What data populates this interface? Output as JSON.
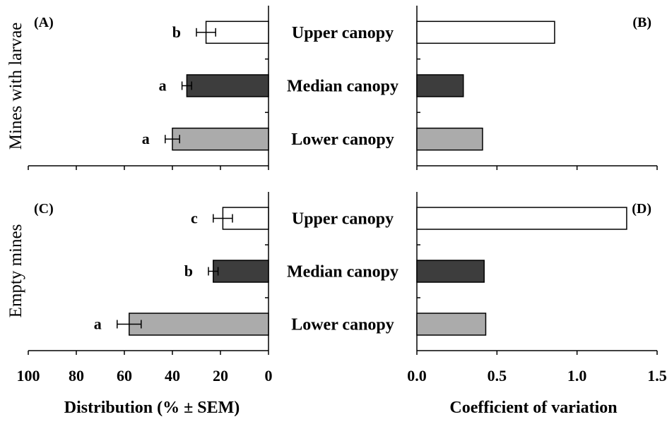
{
  "figure": {
    "row_titles": [
      "Mines with larvae",
      "Empty mines"
    ],
    "categories": [
      "Upper canopy",
      "Median canopy",
      "Lower canopy"
    ]
  },
  "chart_data": [
    {
      "panel": "(A)",
      "type": "bar",
      "orientation": "horizontal",
      "x_reversed": true,
      "categories": [
        "Upper canopy",
        "Median canopy",
        "Lower canopy"
      ],
      "values": [
        26,
        34,
        40
      ],
      "errors": [
        4,
        2,
        3
      ],
      "significance": [
        "b",
        "a",
        "a"
      ],
      "bar_colors": [
        "#ffffff",
        "#3d3d3d",
        "#ababab"
      ],
      "xlim": [
        0,
        100
      ],
      "xticks": [
        100,
        80,
        60,
        40,
        20,
        0
      ],
      "xlabel": "Distribution (% ± SEM)",
      "ylabel": "Mines with larvae"
    },
    {
      "panel": "(B)",
      "type": "bar",
      "orientation": "horizontal",
      "categories": [
        "Upper canopy",
        "Median canopy",
        "Lower canopy"
      ],
      "values": [
        0.86,
        0.29,
        0.41
      ],
      "bar_colors": [
        "#ffffff",
        "#3d3d3d",
        "#ababab"
      ],
      "xlim": [
        0,
        1.5
      ],
      "xticks": [
        "0.0",
        "0.5",
        "1.0",
        "1.5"
      ],
      "xlabel": "Coefficient of variation"
    },
    {
      "panel": "(C)",
      "type": "bar",
      "orientation": "horizontal",
      "x_reversed": true,
      "categories": [
        "Upper canopy",
        "Median canopy",
        "Lower canopy"
      ],
      "values": [
        19,
        23,
        58
      ],
      "errors": [
        4,
        2,
        5
      ],
      "significance": [
        "c",
        "b",
        "a"
      ],
      "bar_colors": [
        "#ffffff",
        "#3d3d3d",
        "#ababab"
      ],
      "xlim": [
        0,
        100
      ],
      "xticks": [
        100,
        80,
        60,
        40,
        20,
        0
      ],
      "xlabel": "Distribution (% ± SEM)",
      "ylabel": "Empty mines"
    },
    {
      "panel": "(D)",
      "type": "bar",
      "orientation": "horizontal",
      "categories": [
        "Upper canopy",
        "Median canopy",
        "Lower canopy"
      ],
      "values": [
        1.31,
        0.42,
        0.43
      ],
      "bar_colors": [
        "#ffffff",
        "#3d3d3d",
        "#ababab"
      ],
      "xlim": [
        0,
        1.5
      ],
      "xticks": [
        "0.0",
        "0.5",
        "1.0",
        "1.5"
      ],
      "xlabel": "Coefficient of variation"
    }
  ]
}
